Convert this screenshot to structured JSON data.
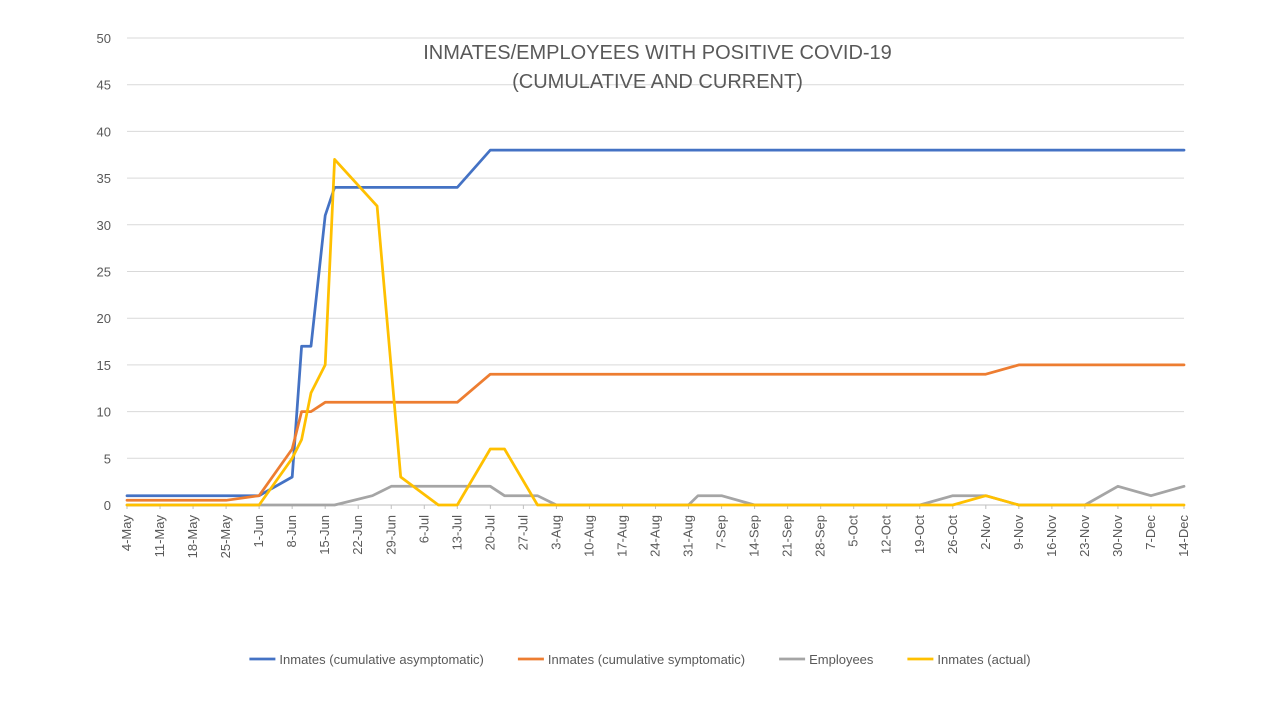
{
  "chart_data": {
    "type": "line",
    "title": [
      "INMATES/EMPLOYEES WITH POSITIVE COVID-19",
      "(CUMULATIVE AND CURRENT)"
    ],
    "ylim": [
      0,
      50
    ],
    "yticks": [
      0,
      5,
      10,
      15,
      20,
      25,
      30,
      35,
      40,
      45,
      50
    ],
    "grid": true,
    "legend_position": "bottom",
    "x_tick_labels": [
      "4-May",
      "11-May",
      "18-May",
      "25-May",
      "1-Jun",
      "8-Jun",
      "15-Jun",
      "22-Jun",
      "29-Jun",
      "6-Jul",
      "13-Jul",
      "20-Jul",
      "27-Jul",
      "3-Aug",
      "10-Aug",
      "17-Aug",
      "24-Aug",
      "31-Aug",
      "7-Sep",
      "14-Sep",
      "21-Sep",
      "28-Sep",
      "5-Oct",
      "12-Oct",
      "19-Oct",
      "26-Oct",
      "2-Nov",
      "9-Nov",
      "16-Nov",
      "23-Nov",
      "30-Nov",
      "7-Dec",
      "14-Dec"
    ],
    "series": [
      {
        "name": "Inmates (cumulative asymptomatic)",
        "color": "#4472C4",
        "points": [
          [
            0,
            1
          ],
          [
            28,
            1
          ],
          [
            35,
            3
          ],
          [
            37,
            17
          ],
          [
            39,
            17
          ],
          [
            42,
            31
          ],
          [
            44,
            34
          ],
          [
            70,
            34
          ],
          [
            77,
            38
          ],
          [
            224,
            38
          ]
        ]
      },
      {
        "name": "Inmates (cumulative symptomatic)",
        "color": "#ED7D31",
        "points": [
          [
            0,
            0.5
          ],
          [
            21,
            0.5
          ],
          [
            28,
            1
          ],
          [
            35,
            6
          ],
          [
            37,
            10
          ],
          [
            39,
            10
          ],
          [
            42,
            11
          ],
          [
            70,
            11
          ],
          [
            77,
            14
          ],
          [
            182,
            14
          ],
          [
            189,
            15
          ],
          [
            224,
            15
          ]
        ]
      },
      {
        "name": "Employees",
        "color": "#A5A5A5",
        "points": [
          [
            0,
            0
          ],
          [
            44,
            0
          ],
          [
            52,
            1
          ],
          [
            56,
            2
          ],
          [
            70,
            2
          ],
          [
            77,
            2
          ],
          [
            80,
            1
          ],
          [
            84,
            1
          ],
          [
            87,
            1
          ],
          [
            91,
            0
          ],
          [
            119,
            0
          ],
          [
            121,
            1
          ],
          [
            126,
            1
          ],
          [
            133,
            0
          ],
          [
            168,
            0
          ],
          [
            175,
            1
          ],
          [
            182,
            1
          ],
          [
            189,
            0
          ],
          [
            203,
            0
          ],
          [
            210,
            2
          ],
          [
            217,
            1
          ],
          [
            224,
            2
          ]
        ]
      },
      {
        "name": "Inmates (actual)",
        "color": "#FFC000",
        "points": [
          [
            0,
            0
          ],
          [
            28,
            0
          ],
          [
            35,
            5
          ],
          [
            37,
            7
          ],
          [
            39,
            12
          ],
          [
            42,
            15
          ],
          [
            44,
            37
          ],
          [
            53,
            32
          ],
          [
            58,
            3
          ],
          [
            66,
            0
          ],
          [
            70,
            0
          ],
          [
            77,
            6
          ],
          [
            80,
            6
          ],
          [
            87,
            0
          ],
          [
            175,
            0
          ],
          [
            182,
            1
          ],
          [
            189,
            0
          ],
          [
            224,
            0
          ]
        ]
      }
    ]
  }
}
